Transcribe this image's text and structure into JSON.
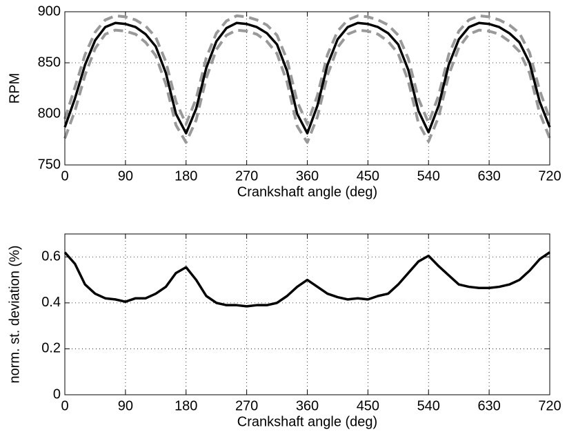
{
  "chart_data": [
    {
      "type": "line",
      "xlabel": "Crankshaft angle (deg)",
      "ylabel": "RPM",
      "x": [
        0,
        15,
        30,
        45,
        60,
        75,
        90,
        105,
        120,
        135,
        150,
        165,
        180,
        195,
        210,
        225,
        240,
        255,
        270,
        285,
        300,
        315,
        330,
        345,
        360,
        375,
        390,
        405,
        420,
        435,
        450,
        465,
        480,
        495,
        510,
        525,
        540,
        555,
        570,
        585,
        600,
        615,
        630,
        645,
        660,
        675,
        690,
        705,
        720
      ],
      "series": [
        {
          "color": "#999999",
          "style": "dashed",
          "values": [
            795,
            826,
            858,
            880,
            892,
            896,
            895,
            892,
            886,
            875,
            851,
            812,
            790,
            815,
            855,
            879,
            891,
            896,
            895,
            892,
            887,
            877,
            853,
            812,
            790,
            818,
            858,
            881,
            892,
            896,
            895,
            892,
            887,
            877,
            854,
            815,
            791,
            818,
            858,
            881,
            892,
            896,
            895,
            892,
            887,
            879,
            860,
            823,
            795
          ]
        },
        {
          "color": "#999999",
          "style": "dashed",
          "values": [
            776,
            803,
            838,
            864,
            878,
            882,
            881,
            878,
            870,
            857,
            829,
            789,
            772,
            794,
            835,
            863,
            877,
            882,
            881,
            878,
            871,
            859,
            831,
            788,
            772,
            797,
            838,
            865,
            878,
            882,
            881,
            878,
            871,
            859,
            832,
            791,
            773,
            797,
            838,
            865,
            878,
            882,
            881,
            878,
            871,
            861,
            840,
            801,
            776
          ]
        },
        {
          "color": "#000000",
          "style": "solid",
          "values": [
            787,
            815,
            848,
            872,
            885,
            889,
            888,
            885,
            878,
            866,
            840,
            800,
            781,
            805,
            845,
            871,
            884,
            889,
            888,
            885,
            879,
            868,
            842,
            800,
            781,
            808,
            848,
            873,
            885,
            889,
            888,
            885,
            879,
            868,
            843,
            803,
            782,
            808,
            848,
            873,
            885,
            889,
            888,
            885,
            879,
            870,
            850,
            812,
            787
          ]
        }
      ],
      "xlim": [
        0,
        720
      ],
      "ylim": [
        750,
        900
      ],
      "xticks": [
        0,
        90,
        180,
        270,
        360,
        450,
        540,
        630,
        720
      ],
      "yticks": [
        750,
        800,
        850,
        900
      ],
      "grid": true
    },
    {
      "type": "line",
      "xlabel": "Crankshaft angle (deg)",
      "ylabel": "norm. st. deviation (%)",
      "x": [
        0,
        15,
        30,
        45,
        60,
        75,
        90,
        105,
        120,
        135,
        150,
        165,
        180,
        195,
        210,
        225,
        240,
        255,
        270,
        285,
        300,
        315,
        330,
        345,
        360,
        375,
        390,
        405,
        420,
        435,
        450,
        465,
        480,
        495,
        510,
        525,
        540,
        555,
        570,
        585,
        600,
        615,
        630,
        645,
        660,
        675,
        690,
        705,
        720
      ],
      "series": [
        {
          "color": "#000000",
          "style": "solid",
          "values": [
            0.62,
            0.57,
            0.48,
            0.44,
            0.42,
            0.415,
            0.405,
            0.42,
            0.42,
            0.44,
            0.47,
            0.53,
            0.555,
            0.5,
            0.43,
            0.4,
            0.39,
            0.39,
            0.385,
            0.39,
            0.39,
            0.4,
            0.43,
            0.47,
            0.5,
            0.47,
            0.44,
            0.425,
            0.415,
            0.42,
            0.415,
            0.43,
            0.44,
            0.48,
            0.53,
            0.58,
            0.605,
            0.56,
            0.52,
            0.48,
            0.47,
            0.465,
            0.465,
            0.47,
            0.48,
            0.5,
            0.54,
            0.59,
            0.62
          ]
        }
      ],
      "xlim": [
        0,
        720
      ],
      "ylim": [
        0,
        0.7
      ],
      "xticks": [
        0,
        90,
        180,
        270,
        360,
        450,
        540,
        630,
        720
      ],
      "yticks": [
        0,
        0.2,
        0.4,
        0.6
      ],
      "grid": true
    }
  ]
}
